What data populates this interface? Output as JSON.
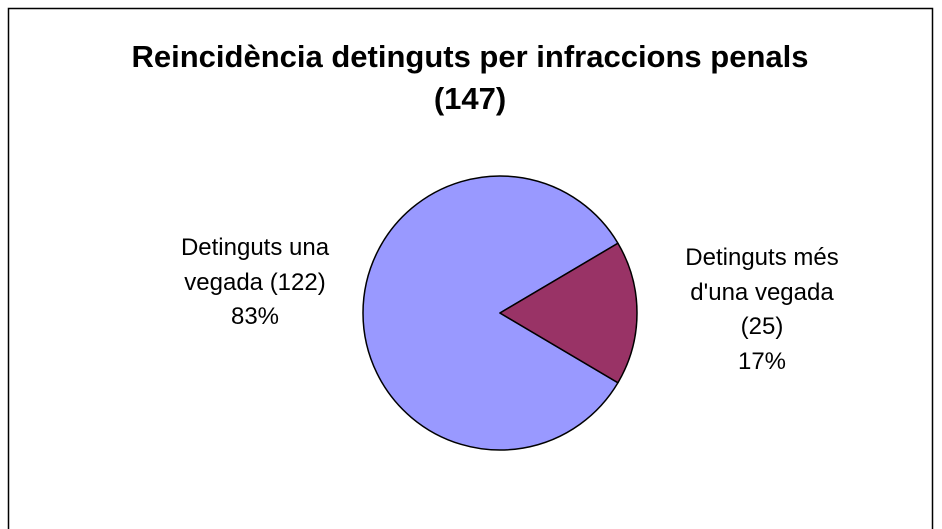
{
  "chart_data": {
    "type": "pie",
    "title": "Reincidència detinguts per infraccions penals (147)",
    "categories": [
      "Detinguts una vegada (122)",
      "Detinguts més d'una vegada (25)"
    ],
    "values": [
      83,
      17
    ],
    "value_labels": [
      "83%",
      "17%"
    ],
    "colors": [
      "#9999ff",
      "#993366"
    ]
  }
}
